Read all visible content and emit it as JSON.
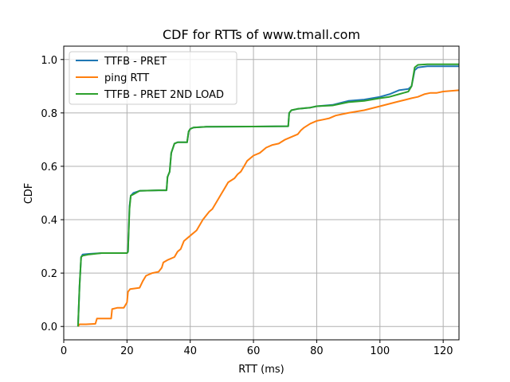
{
  "chart_data": {
    "type": "line",
    "title": "CDF for RTTs of www.tmall.com",
    "xlabel": "RTT (ms)",
    "ylabel": "CDF",
    "xlim": [
      0,
      125
    ],
    "ylim": [
      -0.05,
      1.05
    ],
    "xticks": [
      0,
      20,
      40,
      60,
      80,
      100,
      120
    ],
    "yticks": [
      0.0,
      0.2,
      0.4,
      0.6,
      0.8,
      1.0
    ],
    "xtick_labels": [
      "0",
      "20",
      "40",
      "60",
      "80",
      "100",
      "120"
    ],
    "ytick_labels": [
      "0.0",
      "0.2",
      "0.4",
      "0.6",
      "0.8",
      "1.0"
    ],
    "grid": true,
    "legend_position": "upper-left",
    "series": [
      {
        "name": "TTFB - PRET",
        "color": "#1f77b4",
        "points": [
          [
            4.5,
            0.0
          ],
          [
            5.0,
            0.15
          ],
          [
            5.5,
            0.26
          ],
          [
            6,
            0.27
          ],
          [
            8,
            0.272
          ],
          [
            12,
            0.275
          ],
          [
            20,
            0.275
          ],
          [
            20.3,
            0.28
          ],
          [
            20.8,
            0.45
          ],
          [
            21.2,
            0.49
          ],
          [
            22,
            0.5
          ],
          [
            24,
            0.508
          ],
          [
            30,
            0.51
          ],
          [
            32.5,
            0.51
          ],
          [
            32.8,
            0.56
          ],
          [
            33.5,
            0.58
          ],
          [
            34,
            0.65
          ],
          [
            35,
            0.685
          ],
          [
            36,
            0.69
          ],
          [
            39,
            0.69
          ],
          [
            39.5,
            0.73
          ],
          [
            40,
            0.74
          ],
          [
            41,
            0.745
          ],
          [
            45,
            0.748
          ],
          [
            60,
            0.749
          ],
          [
            71,
            0.75
          ],
          [
            71.3,
            0.8
          ],
          [
            72,
            0.81
          ],
          [
            74,
            0.815
          ],
          [
            78,
            0.82
          ],
          [
            80,
            0.825
          ],
          [
            85,
            0.83
          ],
          [
            90,
            0.845
          ],
          [
            95,
            0.85
          ],
          [
            100,
            0.86
          ],
          [
            103,
            0.87
          ],
          [
            106,
            0.885
          ],
          [
            109,
            0.89
          ],
          [
            110,
            0.9
          ],
          [
            111,
            0.96
          ],
          [
            112,
            0.97
          ],
          [
            115,
            0.975
          ],
          [
            125,
            0.975
          ]
        ]
      },
      {
        "name": "ping RTT",
        "color": "#ff7f0e",
        "points": [
          [
            4.5,
            0.0
          ],
          [
            5,
            0.008
          ],
          [
            7,
            0.008
          ],
          [
            10,
            0.01
          ],
          [
            10.5,
            0.03
          ],
          [
            14,
            0.03
          ],
          [
            15,
            0.03
          ],
          [
            15.3,
            0.065
          ],
          [
            17,
            0.07
          ],
          [
            19,
            0.07
          ],
          [
            20,
            0.09
          ],
          [
            20.3,
            0.13
          ],
          [
            21,
            0.14
          ],
          [
            24,
            0.145
          ],
          [
            25,
            0.17
          ],
          [
            26,
            0.19
          ],
          [
            28,
            0.2
          ],
          [
            30,
            0.205
          ],
          [
            31,
            0.22
          ],
          [
            31.5,
            0.24
          ],
          [
            33,
            0.25
          ],
          [
            35,
            0.26
          ],
          [
            36,
            0.28
          ],
          [
            37,
            0.29
          ],
          [
            38,
            0.32
          ],
          [
            40,
            0.34
          ],
          [
            42,
            0.36
          ],
          [
            44,
            0.4
          ],
          [
            46,
            0.43
          ],
          [
            47,
            0.44
          ],
          [
            48,
            0.46
          ],
          [
            50,
            0.5
          ],
          [
            51,
            0.52
          ],
          [
            52,
            0.54
          ],
          [
            54,
            0.555
          ],
          [
            55,
            0.57
          ],
          [
            56,
            0.58
          ],
          [
            57,
            0.6
          ],
          [
            58,
            0.62
          ],
          [
            60,
            0.64
          ],
          [
            62,
            0.65
          ],
          [
            64,
            0.67
          ],
          [
            66,
            0.68
          ],
          [
            68,
            0.685
          ],
          [
            70,
            0.7
          ],
          [
            72,
            0.71
          ],
          [
            74,
            0.72
          ],
          [
            75,
            0.735
          ],
          [
            76,
            0.745
          ],
          [
            78,
            0.76
          ],
          [
            80,
            0.77
          ],
          [
            82,
            0.775
          ],
          [
            84,
            0.78
          ],
          [
            86,
            0.79
          ],
          [
            88,
            0.795
          ],
          [
            90,
            0.8
          ],
          [
            95,
            0.81
          ],
          [
            100,
            0.825
          ],
          [
            105,
            0.84
          ],
          [
            110,
            0.855
          ],
          [
            112,
            0.86
          ],
          [
            114,
            0.87
          ],
          [
            116,
            0.875
          ],
          [
            118,
            0.875
          ],
          [
            120,
            0.88
          ],
          [
            125,
            0.885
          ]
        ]
      },
      {
        "name": "TTFB - PRET 2ND LOAD",
        "color": "#2ca02c",
        "points": [
          [
            4.5,
            0.0
          ],
          [
            5.0,
            0.15
          ],
          [
            5.5,
            0.26
          ],
          [
            6,
            0.265
          ],
          [
            8,
            0.27
          ],
          [
            12,
            0.275
          ],
          [
            20,
            0.275
          ],
          [
            20.3,
            0.28
          ],
          [
            20.8,
            0.44
          ],
          [
            21.2,
            0.49
          ],
          [
            22,
            0.495
          ],
          [
            24,
            0.508
          ],
          [
            30,
            0.51
          ],
          [
            32.5,
            0.51
          ],
          [
            32.8,
            0.56
          ],
          [
            33.5,
            0.58
          ],
          [
            34,
            0.65
          ],
          [
            35,
            0.685
          ],
          [
            36,
            0.69
          ],
          [
            39,
            0.69
          ],
          [
            39.5,
            0.73
          ],
          [
            40,
            0.74
          ],
          [
            41,
            0.745
          ],
          [
            45,
            0.748
          ],
          [
            60,
            0.749
          ],
          [
            71,
            0.75
          ],
          [
            71.3,
            0.8
          ],
          [
            72,
            0.81
          ],
          [
            74,
            0.815
          ],
          [
            78,
            0.82
          ],
          [
            80,
            0.825
          ],
          [
            85,
            0.828
          ],
          [
            90,
            0.84
          ],
          [
            95,
            0.845
          ],
          [
            100,
            0.855
          ],
          [
            103,
            0.86
          ],
          [
            106,
            0.87
          ],
          [
            109,
            0.88
          ],
          [
            110,
            0.9
          ],
          [
            111,
            0.97
          ],
          [
            112,
            0.98
          ],
          [
            115,
            0.982
          ],
          [
            125,
            0.982
          ]
        ]
      }
    ]
  }
}
